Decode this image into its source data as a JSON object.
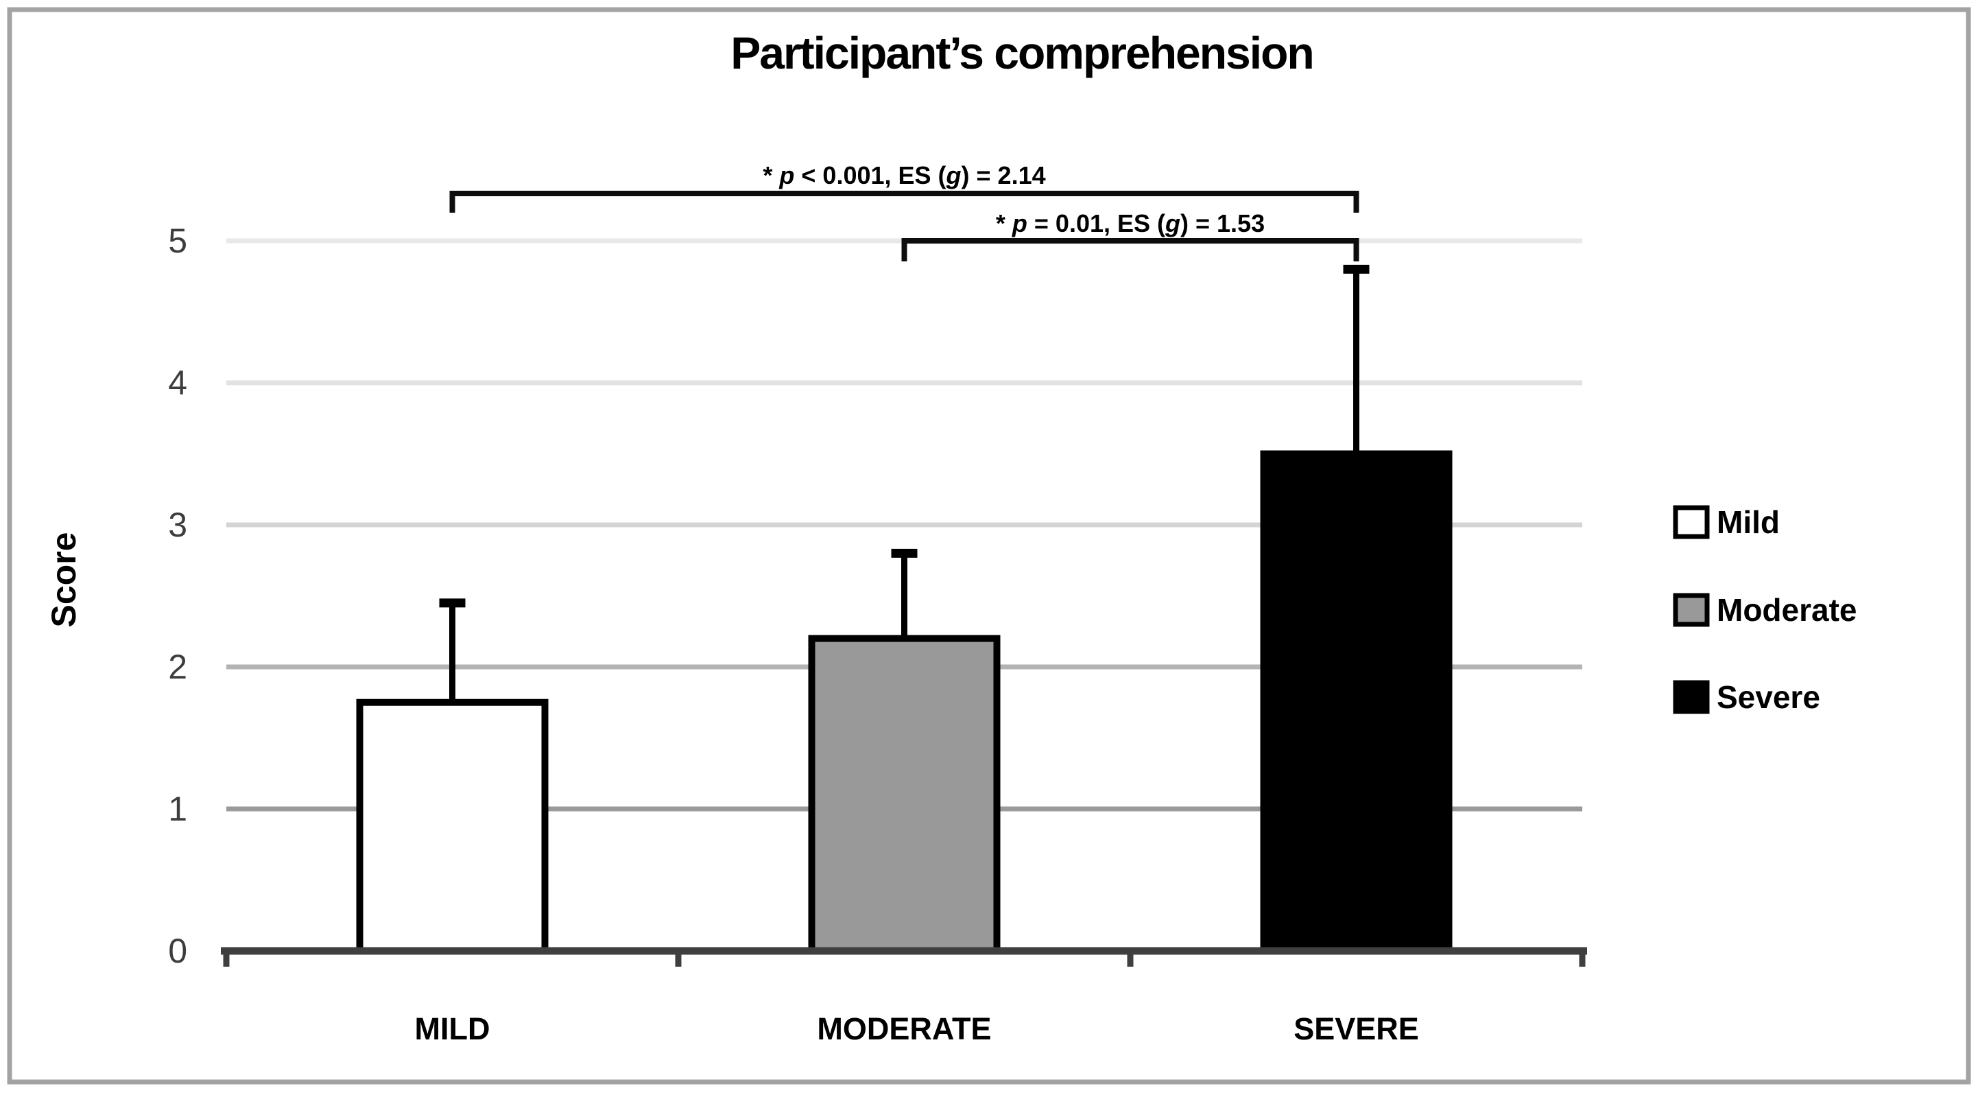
{
  "chart_data": {
    "type": "bar",
    "title": "Participant’s comprehension",
    "ylabel": "Score",
    "xlabel": "",
    "categories": [
      "MILD",
      "MODERATE",
      "SEVERE"
    ],
    "values": [
      1.75,
      2.2,
      3.5
    ],
    "errors_plus": [
      0.7,
      0.6,
      1.3
    ],
    "bar_fills": [
      "#ffffff",
      "#999999",
      "#000000"
    ],
    "ylim": [
      0,
      5
    ],
    "yticks": [
      0,
      1,
      2,
      3,
      4,
      5
    ],
    "grid": true,
    "legend": {
      "position": "right",
      "entries": [
        {
          "label": "Mild",
          "fill": "#ffffff"
        },
        {
          "label": "Moderate",
          "fill": "#999999"
        },
        {
          "label": "Severe",
          "fill": "#000000"
        }
      ]
    },
    "annotations": [
      {
        "text": "* p < 0.001, ES (g) = 2.14",
        "between": [
          "MILD",
          "SEVERE"
        ]
      },
      {
        "text": "* p = 0.01, ES (g) = 1.53",
        "between": [
          "MODERATE",
          "SEVERE"
        ]
      }
    ]
  },
  "colors": {
    "frame_border": "#a3a3a3",
    "axis_line": "#3f3f3f",
    "tick_label": "#3d3d3d",
    "bar_border": "#000000",
    "error_bar": "#000000",
    "bracket": "#0d0d0d",
    "text": "#000000",
    "gridline_1": "#9a9a9a",
    "gridline_2": "#b3b3b3",
    "gridline_3": "#d4d4d4",
    "gridline_4": "#e2e2e2",
    "gridline_5": "#e8e8e8"
  }
}
